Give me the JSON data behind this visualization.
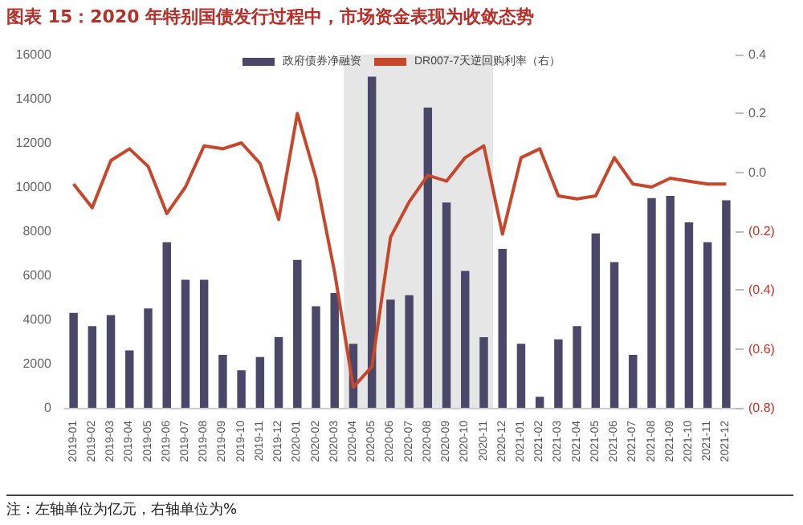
{
  "chart_data": {
    "type": "bar",
    "title": "图表 15：2020 年特别国债发行过程中，市场资金表现为收敛态势",
    "categories": [
      "2019-01",
      "2019-02",
      "2019-03",
      "2019-04",
      "2019-05",
      "2019-06",
      "2019-07",
      "2019-08",
      "2019-09",
      "2019-10",
      "2019-11",
      "2019-12",
      "2020-01",
      "2020-02",
      "2020-03",
      "2020-04",
      "2020-05",
      "2020-06",
      "2020-07",
      "2020-08",
      "2020-09",
      "2020-10",
      "2020-11",
      "2020-12",
      "2021-01",
      "2021-02",
      "2021-03",
      "2021-04",
      "2021-05",
      "2021-06",
      "2021-07",
      "2021-08",
      "2021-09",
      "2021-10",
      "2021-11",
      "2021-12"
    ],
    "series": [
      {
        "name": "政府债券净融资",
        "color": "#4b4768",
        "values": [
          4300,
          3700,
          4200,
          2600,
          4500,
          7500,
          5800,
          5800,
          2400,
          1700,
          2300,
          3200,
          6700,
          4600,
          5200,
          2900,
          15000,
          4900,
          5100,
          13600,
          9300,
          6200,
          3200,
          7200,
          2900,
          500,
          3100,
          3700,
          7900,
          6600,
          2400,
          9500,
          9600,
          8400,
          7500,
          9400
        ]
      },
      {
        "name": "DR007-7天逆回购利率（右）",
        "type": "line",
        "axis": "y2",
        "color": "#c5482c",
        "values": [
          -0.04,
          -0.12,
          0.04,
          0.08,
          0.02,
          -0.14,
          -0.05,
          0.09,
          0.08,
          0.1,
          0.03,
          -0.16,
          0.2,
          -0.02,
          -0.34,
          -0.73,
          -0.66,
          -0.22,
          -0.1,
          -0.01,
          -0.03,
          0.05,
          0.09,
          -0.21,
          0.05,
          0.08,
          -0.08,
          -0.09,
          -0.08,
          0.05,
          -0.04,
          -0.05,
          -0.02,
          -0.03,
          -0.04,
          -0.04
        ]
      }
    ],
    "ylim": [
      0,
      16000
    ],
    "yticks": [
      0,
      2000,
      4000,
      6000,
      8000,
      10000,
      12000,
      14000,
      16000
    ],
    "y2lim": [
      -0.8,
      0.4
    ],
    "y2ticks": [
      {
        "value": -0.8,
        "label": "(0.8)"
      },
      {
        "value": -0.6,
        "label": "(0.6)"
      },
      {
        "value": -0.4,
        "label": "(0.4)"
      },
      {
        "value": -0.2,
        "label": "(0.2)"
      },
      {
        "value": 0,
        "label": "0.0"
      },
      {
        "value": 0.2,
        "label": "0.2"
      },
      {
        "value": 0.4,
        "label": "0.4"
      }
    ],
    "bands": [
      {
        "axis": "x",
        "from": "2020-04",
        "to": "2020-11",
        "color": "#e6e6e6"
      }
    ],
    "legend": "top",
    "grid": false,
    "marker": "none",
    "line_style": "solid",
    "annotations": [
      "注：左轴单位为亿元，右轴单位为%"
    ]
  }
}
